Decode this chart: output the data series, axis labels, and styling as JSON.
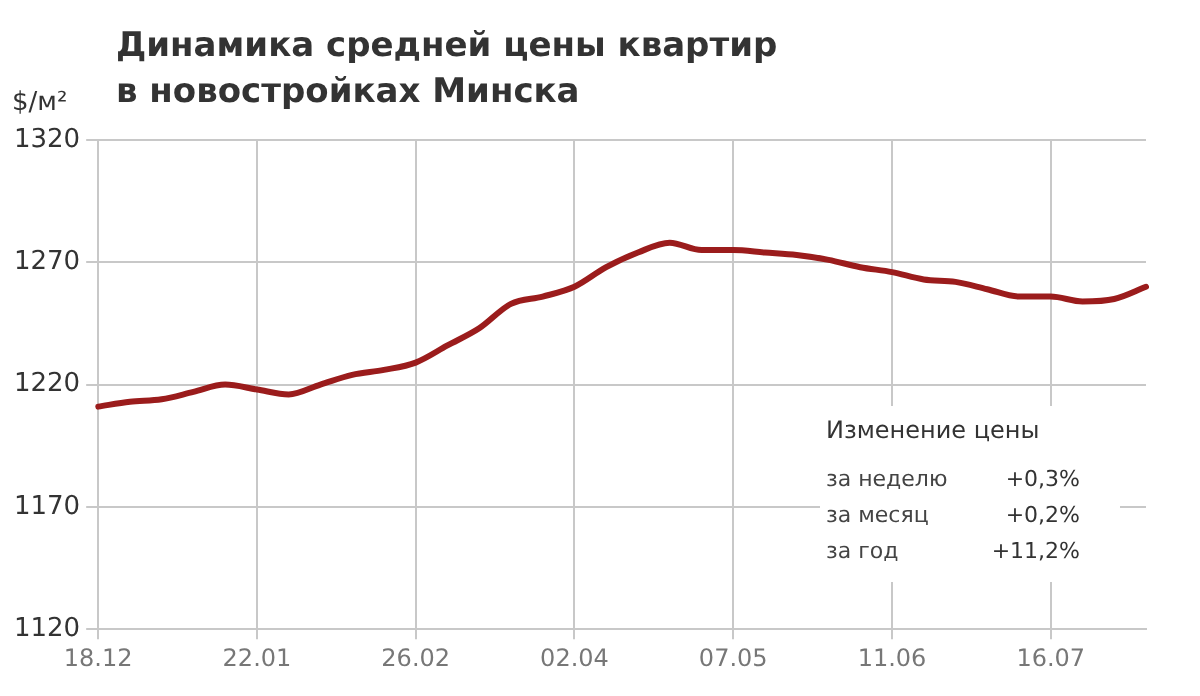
{
  "chart_data": {
    "type": "line",
    "title": "Динамика средней цены квартир\nв новостройках Минска",
    "ylabel": "$/м²",
    "categories": [
      "18.12",
      null,
      null,
      null,
      null,
      "22.01",
      null,
      null,
      null,
      null,
      "26.02",
      null,
      null,
      null,
      null,
      "02.04",
      null,
      null,
      null,
      null,
      "07.05",
      null,
      null,
      null,
      null,
      "11.06",
      null,
      null,
      null,
      null,
      "16.07",
      null,
      null,
      null
    ],
    "series": [
      {
        "color": "#9b1c1c",
        "values": [
          1211,
          1213,
          1214,
          1217,
          1220,
          1218,
          1216,
          1220,
          1224,
          1226,
          1229,
          1236,
          1243,
          1253,
          1256,
          1260,
          1268,
          1274,
          1278,
          1275,
          1275,
          1274,
          1273,
          1271,
          1268,
          1266,
          1263,
          1262,
          1259,
          1256,
          1256,
          1254,
          1255,
          1260
        ]
      }
    ],
    "ylim": [
      1120,
      1320
    ],
    "yticks": [
      1120,
      1170,
      1220,
      1270,
      1320
    ],
    "grid": true,
    "legend": false,
    "marker": "none",
    "line_style": "solid",
    "annotations": [
      "Изменение цены",
      "за неделю",
      "+0,3%",
      "за месяц",
      "+0,2%",
      "за год",
      "+11,2%"
    ]
  }
}
